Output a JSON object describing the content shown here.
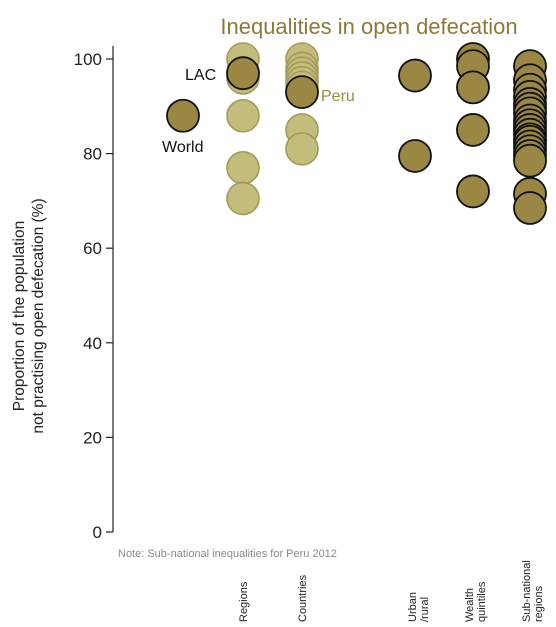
{
  "chart_data": {
    "type": "scatter",
    "title": "Inequalities in open defecation",
    "ylabel": "Proportion of the population\nnot practising open defecation (%)",
    "ylim": [
      0,
      100
    ],
    "yticks": [
      0,
      20,
      40,
      60,
      80,
      100
    ],
    "note": "Note: Sub-national inequalities for Peru  2012",
    "categories": [
      "Regions",
      "Countries",
      "Urban\n/rural",
      "Wealth\nquintiles",
      "Sub-national\nregions"
    ],
    "colors": {
      "light": "#c2bd7b",
      "light_stroke": "#a39a5a",
      "dark": "#9b8744",
      "dark_stroke": "#111111",
      "title": "#8c7a3a",
      "peru_label": "#9b8a45"
    },
    "series": [
      {
        "group": "World",
        "style": "dark",
        "points": [
          88
        ]
      },
      {
        "group": "Regions",
        "style": "light",
        "points": [
          100,
          96,
          88,
          77,
          70.5
        ]
      },
      {
        "group": "Regions",
        "style": "dark",
        "points": [
          97
        ]
      },
      {
        "group": "Countries",
        "style": "light",
        "points": [
          100,
          98,
          97,
          96,
          95,
          94,
          85,
          81
        ]
      },
      {
        "group": "Countries",
        "style": "dark",
        "points": [
          93
        ]
      },
      {
        "group": "Urban\n/rural",
        "style": "dark",
        "points": [
          96.5,
          79.5
        ]
      },
      {
        "group": "Wealth\nquintiles",
        "style": "dark",
        "points": [
          100,
          98.5,
          94,
          85,
          72
        ]
      },
      {
        "group": "Sub-national\nregions",
        "style": "dark",
        "points": [
          98.5,
          95.5,
          93.5,
          92,
          90.5,
          89.5,
          88.5,
          87,
          86,
          85,
          84,
          83,
          82.5,
          81.5,
          80.5,
          79.5,
          78.5,
          71.5,
          68.5
        ]
      }
    ],
    "annotations": [
      {
        "text": "LAC",
        "style": "plain"
      },
      {
        "text": "World",
        "style": "plain"
      },
      {
        "text": "Peru",
        "style": "peru"
      }
    ]
  }
}
